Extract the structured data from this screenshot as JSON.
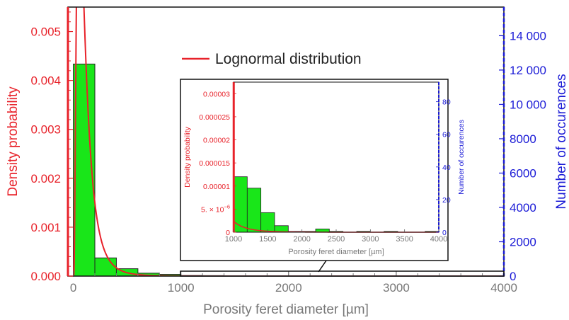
{
  "chart_data": [
    {
      "type": "bar",
      "role": "main",
      "xlabel": "Porosity feret diameter [µm]",
      "ylabel_left": "Density probability",
      "ylabel_right": "Number of occurences",
      "xlim": [
        -50,
        4000
      ],
      "ylim_left": [
        0,
        0.0055
      ],
      "ylim_right": [
        0,
        15667
      ],
      "x_ticks": [
        "0",
        "1000",
        "2000",
        "3000",
        "4000"
      ],
      "x_tick_values": [
        0,
        1000,
        2000,
        3000,
        4000
      ],
      "y_left_ticks": [
        "0.000",
        "0.001",
        "0.002",
        "0.003",
        "0.004",
        "0.005"
      ],
      "y_left_tick_values": [
        0,
        0.001,
        0.002,
        0.003,
        0.004,
        0.005
      ],
      "y_right_ticks": [
        "0",
        "2000",
        "4000",
        "6000",
        "8000",
        "10 000",
        "12 000",
        "14 000"
      ],
      "y_right_tick_values": [
        0,
        2000,
        4000,
        6000,
        8000,
        10000,
        12000,
        14000
      ],
      "bin_width": 200,
      "bins": [
        {
          "x0": 0,
          "x1": 200,
          "count": 12350
        },
        {
          "x0": 200,
          "x1": 400,
          "count": 1060
        },
        {
          "x0": 400,
          "x1": 600,
          "count": 430
        },
        {
          "x0": 600,
          "x1": 800,
          "count": 170
        },
        {
          "x0": 800,
          "x1": 1000,
          "count": 100
        },
        {
          "x0": 1000,
          "x1": 1200,
          "count": 34
        },
        {
          "x0": 1200,
          "x1": 1400,
          "count": 27
        },
        {
          "x0": 1400,
          "x1": 1600,
          "count": 12
        },
        {
          "x0": 1600,
          "x1": 1800,
          "count": 4
        },
        {
          "x0": 1800,
          "x1": 2000,
          "count": 0.5
        },
        {
          "x0": 2000,
          "x1": 2200,
          "count": 0.5
        },
        {
          "x0": 2200,
          "x1": 2400,
          "count": 2
        },
        {
          "x0": 2400,
          "x1": 2600,
          "count": 0.5
        },
        {
          "x0": 2600,
          "x1": 2800,
          "count": 0
        },
        {
          "x0": 2800,
          "x1": 3000,
          "count": 0.5
        },
        {
          "x0": 3000,
          "x1": 3200,
          "count": 0
        },
        {
          "x0": 3200,
          "x1": 3400,
          "count": 0.5
        },
        {
          "x0": 3400,
          "x1": 3600,
          "count": 0
        },
        {
          "x0": 3600,
          "x1": 3800,
          "count": 0
        },
        {
          "x0": 3800,
          "x1": 4000,
          "count": 0.5
        }
      ],
      "series": [
        {
          "name": "Lognormal distribution",
          "type": "line",
          "mu": 4.5,
          "sigma": 0.73
        }
      ],
      "legend_position": "top-center"
    },
    {
      "type": "bar",
      "role": "inset",
      "xlabel": "Porosity feret diameter [µm]",
      "ylabel_left": "Density probability",
      "ylabel_right": "Number of occurences",
      "xlim": [
        1000,
        4000
      ],
      "ylim_left": [
        0,
        3.25e-05
      ],
      "ylim_right": [
        0,
        92
      ],
      "x_ticks": [
        "1000",
        "1500",
        "2000",
        "2500",
        "3000",
        "3500",
        "4000"
      ],
      "x_tick_values": [
        1000,
        1500,
        2000,
        2500,
        3000,
        3500,
        4000
      ],
      "y_left_ticks": [
        "0",
        "5. × 10",
        "0.00001",
        "0.000015",
        "0.00002",
        "0.000025",
        "0.00003"
      ],
      "y_left_tick_exponent": "−6",
      "y_left_tick_values": [
        0,
        5e-06,
        1e-05,
        1.5e-05,
        2e-05,
        2.5e-05,
        3e-05
      ],
      "y_right_ticks": [
        "0",
        "20",
        "40",
        "60",
        "80"
      ],
      "y_right_tick_values": [
        0,
        20,
        40,
        60,
        80
      ]
    }
  ],
  "colors": {
    "red": "#e8222a",
    "blue": "#1a1ad6",
    "bar_fill": "#19e619",
    "axis_gray": "#777777",
    "frame": "#111111"
  }
}
